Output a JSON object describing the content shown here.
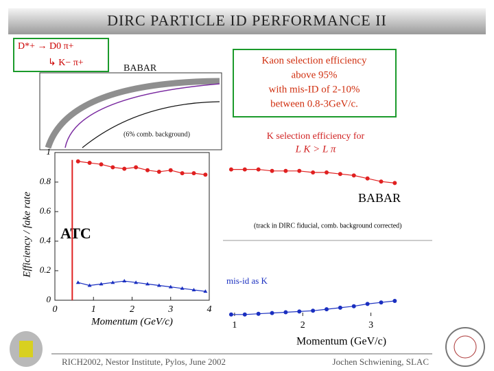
{
  "header": {
    "title": "DIRC PARTICLE ID PERFORMANCE II"
  },
  "inset": {
    "decay1": "D*+ → D0 π+",
    "decay2": "↳ K− π+",
    "babar": "BABAR",
    "note": "(6% comb. background)"
  },
  "box": {
    "lines": [
      "Kaon selection efficiency",
      "above 95%",
      "with mis-ID of 2-10%",
      "between 0.8-3GeV/c."
    ]
  },
  "caption": {
    "line1": "K selection efficiency for",
    "line2": "L K > L π"
  },
  "chart_data": [
    {
      "type": "scatter",
      "ylabel": "Efficiency / fake rate",
      "xlabel": "Momentum (GeV/c)",
      "annotation": "ATC",
      "x": [
        0.6,
        0.9,
        1.2,
        1.5,
        1.8,
        2.1,
        2.4,
        2.7,
        3.0,
        3.3,
        3.6,
        3.9
      ],
      "xlim": [
        0,
        4
      ],
      "xticks": [
        0,
        1,
        2,
        3,
        4
      ],
      "ylim": [
        0,
        1
      ],
      "yticks": [
        0,
        0.2,
        0.4,
        0.6,
        0.8,
        1
      ],
      "series": [
        {
          "name": "K efficiency",
          "color": "#e02020",
          "values": [
            0.94,
            0.93,
            0.92,
            0.9,
            0.89,
            0.9,
            0.88,
            0.87,
            0.88,
            0.86,
            0.86,
            0.85
          ]
        },
        {
          "name": "fake rate",
          "color": "#1a2fc0",
          "values": [
            0.12,
            0.1,
            0.11,
            0.12,
            0.13,
            0.12,
            0.11,
            0.1,
            0.09,
            0.08,
            0.07,
            0.06
          ]
        }
      ]
    },
    {
      "type": "scatter",
      "xlabel": "Momentum   (GeV/c)",
      "annotation": "BABAR",
      "note": "(track in DIRC fiducial, comb. background corrected)",
      "misid": "mis-id as K",
      "x": [
        0.95,
        1.15,
        1.35,
        1.55,
        1.75,
        1.95,
        2.15,
        2.35,
        2.55,
        2.75,
        2.95,
        3.15,
        3.35
      ],
      "xlim": [
        0.83,
        3.9
      ],
      "xticks": [
        1,
        2,
        3
      ],
      "ylim": [
        0.5,
        1
      ],
      "y2lim": [
        0,
        0.5
      ],
      "series": [
        {
          "name": "K efficiency",
          "color": "#e02020",
          "values": [
            0.97,
            0.97,
            0.97,
            0.96,
            0.96,
            0.96,
            0.95,
            0.95,
            0.94,
            0.93,
            0.91,
            0.89,
            0.88
          ]
        },
        {
          "name": "mis-id as K",
          "color": "#1a2fc0",
          "axis": "y2",
          "values": [
            0.01,
            0.01,
            0.015,
            0.02,
            0.025,
            0.03,
            0.035,
            0.045,
            0.055,
            0.065,
            0.08,
            0.09,
            0.1
          ]
        }
      ]
    }
  ],
  "footer": {
    "left": "RICH2002, Nestor Institute, Pylos, June 2002",
    "right": "Jochen Schwiening, SLAC"
  }
}
